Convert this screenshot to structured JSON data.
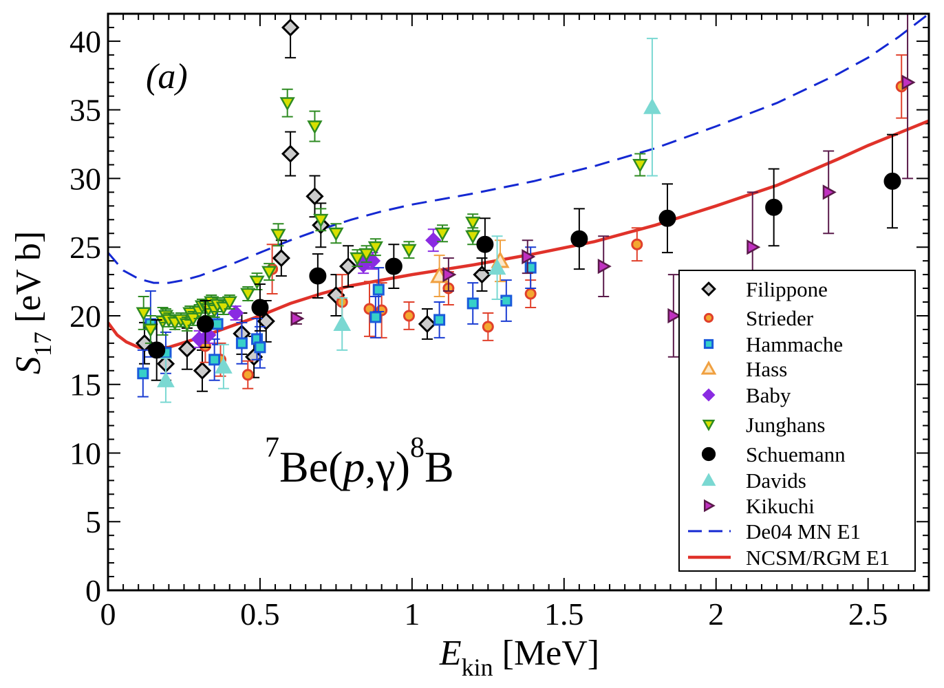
{
  "chart_data": {
    "type": "scatter",
    "panel_label": "(a)",
    "reaction": {
      "pre_sup": "7",
      "core": "Be(",
      "p": "p",
      "mid": ",γ)",
      "post_sup": "8",
      "tail": "B"
    },
    "xlabel": {
      "main": "E",
      "sub": "kin",
      "unit": " [MeV]"
    },
    "ylabel": {
      "main": "S",
      "sub": "17",
      "unit": " [eV b]"
    },
    "xlim": [
      0,
      2.7
    ],
    "ylim": [
      0,
      42
    ],
    "x_ticks": [
      0,
      0.5,
      1,
      1.5,
      2,
      2.5
    ],
    "x_tick_labels": [
      "0",
      "0.5",
      "1",
      "1.5",
      "2",
      "2.5"
    ],
    "y_ticks": [
      0,
      5,
      10,
      15,
      20,
      25,
      30,
      35,
      40
    ],
    "y_tick_labels": [
      "0",
      "5",
      "10",
      "15",
      "20",
      "25",
      "30",
      "35",
      "40"
    ],
    "legend_position": "bottom-right",
    "series": [
      {
        "name": "Filippone",
        "marker": "diamond",
        "color": "#000000",
        "fill": "#cccccc",
        "points": [
          [
            0.12,
            18.0,
            1.5
          ],
          [
            0.19,
            16.5,
            1.2
          ],
          [
            0.26,
            17.6,
            1.5
          ],
          [
            0.31,
            16.0,
            1.5
          ],
          [
            0.44,
            18.7,
            1.5
          ],
          [
            0.48,
            17.0,
            1.5
          ],
          [
            0.52,
            19.6,
            1.5
          ],
          [
            0.57,
            24.2,
            1.3
          ],
          [
            0.6,
            31.8,
            1.6
          ],
          [
            0.6,
            41.0,
            2.2
          ],
          [
            0.68,
            28.7,
            1.5
          ],
          [
            0.7,
            26.6,
            1.6
          ],
          [
            0.75,
            21.5,
            1.5
          ],
          [
            0.79,
            23.6,
            1.5
          ],
          [
            1.05,
            19.4,
            1.1
          ],
          [
            1.23,
            23.0,
            1.2
          ]
        ]
      },
      {
        "name": "Strieder",
        "marker": "circle-small",
        "color": "#e0402b",
        "fill": "#f3a830",
        "points": [
          [
            0.32,
            17.8,
            1.2
          ],
          [
            0.37,
            16.8,
            1.2
          ],
          [
            0.46,
            15.7,
            1.0
          ],
          [
            0.54,
            23.4,
            1.8
          ],
          [
            0.77,
            21.0,
            2.0
          ],
          [
            0.86,
            20.5,
            2.0
          ],
          [
            0.9,
            20.4,
            2.0
          ],
          [
            0.99,
            20.0,
            1.0
          ],
          [
            1.12,
            22.0,
            1.2
          ],
          [
            1.25,
            19.2,
            1.0
          ],
          [
            1.39,
            21.6,
            1.0
          ],
          [
            1.74,
            25.2,
            1.2
          ],
          [
            2.61,
            36.7,
            2.3
          ]
        ]
      },
      {
        "name": "Hammache",
        "marker": "square",
        "color": "#1a5adb",
        "fill": "#36d0c8",
        "points": [
          [
            0.115,
            15.8,
            1.7
          ],
          [
            0.14,
            19.4,
            2.4
          ],
          [
            0.19,
            17.3,
            1.5
          ],
          [
            0.35,
            16.8,
            1.5
          ],
          [
            0.36,
            19.4,
            1.5
          ],
          [
            0.44,
            18.0,
            1.5
          ],
          [
            0.49,
            18.3,
            1.5
          ],
          [
            0.5,
            17.7,
            1.5
          ],
          [
            0.88,
            19.9,
            1.5
          ],
          [
            0.89,
            21.9,
            1.6
          ],
          [
            1.09,
            19.7,
            1.3
          ],
          [
            1.2,
            20.9,
            1.5
          ],
          [
            1.31,
            21.1,
            1.5
          ],
          [
            1.39,
            23.5,
            1.5
          ]
        ]
      },
      {
        "name": "Hass",
        "marker": "triangle-open",
        "color": "#f0a040",
        "fill": "none",
        "points": [
          [
            1.09,
            22.9,
            1.5
          ],
          [
            1.29,
            24.0,
            1.5
          ]
        ]
      },
      {
        "name": "Baby",
        "marker": "diamond-solid",
        "color": "#8a2be2",
        "fill": "#8a2be2",
        "points": [
          [
            0.3,
            18.3,
            0.6
          ],
          [
            0.33,
            18.6,
            0.6
          ],
          [
            0.42,
            20.2,
            0.5
          ],
          [
            0.84,
            23.7,
            0.6
          ],
          [
            0.85,
            24.1,
            0.6
          ],
          [
            0.87,
            24.0,
            0.6
          ],
          [
            1.07,
            25.5,
            0.8
          ]
        ]
      },
      {
        "name": "Junghans",
        "marker": "triangle-down",
        "color": "#2e8b22",
        "fill": "#d8e000",
        "points": [
          [
            0.117,
            20.2,
            1.2
          ],
          [
            0.14,
            19.0,
            1.0
          ],
          [
            0.18,
            19.6,
            1.0
          ],
          [
            0.19,
            20.0,
            0.5
          ],
          [
            0.2,
            19.7,
            0.5
          ],
          [
            0.22,
            19.5,
            0.5
          ],
          [
            0.24,
            19.7,
            0.5
          ],
          [
            0.26,
            19.4,
            0.5
          ],
          [
            0.27,
            20.2,
            0.5
          ],
          [
            0.28,
            19.8,
            0.5
          ],
          [
            0.3,
            20.3,
            0.5
          ],
          [
            0.31,
            20.7,
            0.5
          ],
          [
            0.32,
            20.7,
            0.5
          ],
          [
            0.33,
            20.5,
            0.5
          ],
          [
            0.34,
            21.0,
            0.5
          ],
          [
            0.35,
            20.4,
            0.5
          ],
          [
            0.36,
            20.8,
            0.5
          ],
          [
            0.38,
            20.6,
            0.5
          ],
          [
            0.4,
            21.0,
            0.5
          ],
          [
            0.46,
            21.6,
            0.5
          ],
          [
            0.49,
            22.5,
            0.6
          ],
          [
            0.53,
            23.2,
            0.6
          ],
          [
            0.56,
            25.9,
            0.8
          ],
          [
            0.59,
            35.5,
            1.0
          ],
          [
            0.68,
            33.8,
            1.1
          ],
          [
            0.7,
            27.0,
            0.8
          ],
          [
            0.75,
            26.0,
            0.7
          ],
          [
            0.82,
            24.2,
            0.6
          ],
          [
            0.85,
            24.5,
            0.6
          ],
          [
            0.88,
            25.0,
            0.6
          ],
          [
            0.99,
            24.8,
            0.6
          ],
          [
            1.1,
            26.0,
            0.6
          ],
          [
            1.2,
            26.8,
            0.6
          ],
          [
            1.2,
            25.8,
            0.6
          ],
          [
            1.75,
            31.0,
            0.8
          ]
        ]
      },
      {
        "name": "Schuemann",
        "marker": "circle-large",
        "color": "#000000",
        "fill": "#000000",
        "points": [
          [
            0.16,
            17.5,
            2.2
          ],
          [
            0.32,
            19.4,
            1.7
          ],
          [
            0.5,
            20.6,
            1.7
          ],
          [
            0.69,
            22.9,
            1.6
          ],
          [
            0.94,
            23.6,
            1.6
          ],
          [
            1.24,
            25.2,
            1.9
          ],
          [
            1.55,
            25.6,
            2.2
          ],
          [
            1.84,
            27.1,
            2.5
          ],
          [
            2.19,
            27.9,
            2.8
          ],
          [
            2.58,
            29.8,
            3.4
          ]
        ]
      },
      {
        "name": "Davids",
        "marker": "triangle-up",
        "color": "#7ad8d2",
        "fill": "#7ad8d2",
        "points": [
          [
            0.19,
            15.3,
            1.6
          ],
          [
            0.38,
            16.3,
            1.6
          ],
          [
            0.77,
            19.4,
            1.9
          ],
          [
            1.28,
            23.5,
            2.3
          ],
          [
            1.79,
            35.2,
            5.0
          ]
        ]
      },
      {
        "name": "Kikuchi",
        "marker": "triangle-right",
        "color": "#5a1a4a",
        "fill": "#c030c0",
        "points": [
          [
            0.62,
            19.8,
            0.4
          ],
          [
            1.12,
            23.0,
            1.2
          ],
          [
            1.38,
            24.3,
            1.2
          ],
          [
            1.63,
            23.6,
            2.2
          ],
          [
            1.86,
            20.0,
            3.0
          ],
          [
            2.12,
            25.0,
            4.0
          ],
          [
            2.37,
            29.0,
            3.0
          ],
          [
            2.63,
            37.0,
            7.0
          ]
        ]
      }
    ],
    "curves": [
      {
        "name": "De04 MN E1",
        "style": "dashed",
        "color": "#1428d2",
        "x": [
          0,
          0.05,
          0.1,
          0.15,
          0.2,
          0.25,
          0.3,
          0.4,
          0.5,
          0.6,
          0.7,
          0.8,
          0.9,
          1.0,
          1.2,
          1.4,
          1.6,
          1.8,
          2.0,
          2.2,
          2.4,
          2.5,
          2.6,
          2.7
        ],
        "y": [
          24.6,
          23.3,
          22.7,
          22.4,
          22.4,
          22.6,
          22.9,
          23.7,
          24.6,
          25.5,
          26.3,
          27.0,
          27.6,
          28.1,
          28.9,
          29.8,
          30.9,
          32.2,
          33.8,
          35.5,
          37.6,
          38.8,
          40.3,
          42.0
        ]
      },
      {
        "name": "NCSM/RGM E1",
        "style": "solid",
        "color": "#e0322a",
        "x": [
          0,
          0.03,
          0.06,
          0.1,
          0.15,
          0.2,
          0.3,
          0.4,
          0.5,
          0.6,
          0.7,
          0.8,
          0.9,
          1.0,
          1.2,
          1.4,
          1.6,
          1.8,
          2.0,
          2.2,
          2.4,
          2.5,
          2.6,
          2.7
        ],
        "y": [
          19.5,
          18.6,
          18.1,
          17.7,
          17.6,
          17.7,
          18.4,
          19.2,
          20.0,
          20.9,
          21.6,
          22.2,
          22.6,
          23.0,
          23.7,
          24.5,
          25.4,
          26.6,
          28.0,
          29.5,
          31.4,
          32.4,
          33.3,
          34.2
        ]
      }
    ]
  }
}
